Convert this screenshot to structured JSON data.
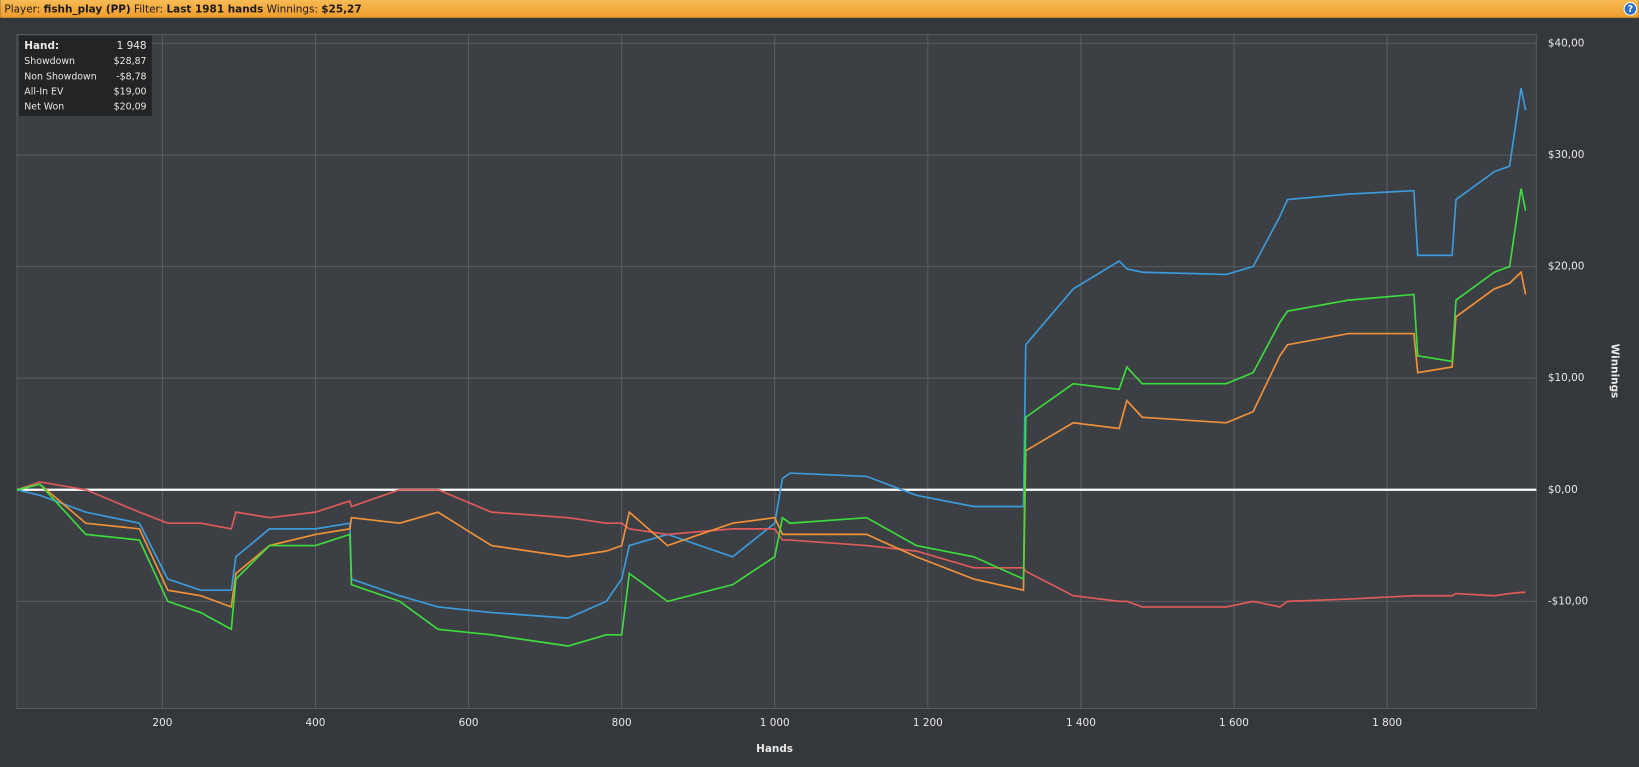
{
  "header": {
    "player_label": "Player:",
    "player": "fishh_play (PP)",
    "filter_label": "Filter:",
    "filter": "Last 1981 hands",
    "winnings_label": "Winnings:",
    "winnings": "$25,27",
    "help": "?"
  },
  "chart_data": {
    "type": "line",
    "x_label": "Hands",
    "y_label": "Winnings",
    "xlim": [
      10,
      1995
    ],
    "ylim": [
      -19.6,
      40.8
    ],
    "xticks": [
      200,
      400,
      600,
      800,
      {
        "value": 1000,
        "label": "1 000"
      },
      {
        "value": 1200,
        "label": "1 200"
      },
      {
        "value": 1400,
        "label": "1 400"
      },
      {
        "value": 1600,
        "label": "1 600"
      },
      {
        "value": 1800,
        "label": "1 800"
      }
    ],
    "yticks": [
      {
        "value": 40,
        "label": "$40,00"
      },
      {
        "value": 30,
        "label": "$30,00"
      },
      {
        "value": 20,
        "label": "$20,00"
      },
      {
        "value": 10,
        "label": "$10,00"
      },
      {
        "value": 0,
        "label": "$0,00"
      },
      {
        "value": -10,
        "label": "-$10,00"
      }
    ],
    "grid": true,
    "zero_line": 0,
    "x": [
      10,
      40,
      100,
      170,
      207,
      250,
      290,
      296,
      340,
      400,
      445,
      447,
      510,
      560,
      630,
      730,
      780,
      800,
      810,
      860,
      945,
      1000,
      1010,
      1020,
      1120,
      1185,
      1260,
      1325,
      1328,
      1390,
      1450,
      1460,
      1480,
      1590,
      1625,
      1660,
      1670,
      1750,
      1835,
      1840,
      1885,
      1890,
      1940,
      1960,
      1975,
      1981
    ],
    "series": [
      {
        "name": "Showdown",
        "color": "#3b9bdb",
        "values": [
          0,
          -0.5,
          -2,
          -3,
          -8,
          -9,
          -9,
          -6,
          -3.5,
          -3.5,
          -3,
          -8,
          -9.5,
          -10.5,
          -11,
          -11.5,
          -10,
          -8,
          -5,
          -4,
          -6,
          -3,
          1,
          1.5,
          1.2,
          -0.5,
          -1.5,
          -1.5,
          13,
          18,
          20.5,
          19.8,
          19.5,
          19.3,
          20,
          24.5,
          26,
          26.5,
          26.8,
          21,
          21,
          26,
          28.5,
          29,
          36,
          34
        ]
      },
      {
        "name": "Non Showdown",
        "color": "#e05a5a",
        "values": [
          0,
          0.7,
          0,
          -2,
          -3,
          -3,
          -3.5,
          -2,
          -2.5,
          -2,
          -1,
          -1.5,
          0,
          0,
          -2,
          -2.5,
          -3,
          -3,
          -3.5,
          -4,
          -3.5,
          -3.5,
          -4.5,
          -4.5,
          -5,
          -5.5,
          -7,
          -7,
          -7.3,
          -9.5,
          -10,
          -10,
          -10.5,
          -10.5,
          -10,
          -10.5,
          -10,
          -9.8,
          -9.5,
          -9.5,
          -9.5,
          -9.3,
          -9.5,
          -9.3,
          -9.2,
          -9.2
        ]
      },
      {
        "name": "All-In EV",
        "color": "#f0913a",
        "values": [
          0,
          0.5,
          -3,
          -3.5,
          -9,
          -9.5,
          -10.5,
          -7.5,
          -5,
          -4,
          -3.5,
          -2.5,
          -3,
          -2,
          -5,
          -6,
          -5.5,
          -5,
          -2,
          -5,
          -3,
          -2.5,
          -4,
          -4,
          -4,
          -6,
          -8,
          -9,
          3.5,
          6,
          5.5,
          8,
          6.5,
          6,
          7,
          12,
          13,
          14,
          14,
          10.5,
          11,
          15.5,
          18,
          18.5,
          19.5,
          17.5
        ]
      },
      {
        "name": "Net Won",
        "color": "#3ddc3d",
        "values": [
          0,
          0.5,
          -4,
          -4.5,
          -10,
          -11,
          -12.5,
          -8,
          -5,
          -5,
          -4,
          -8.5,
          -10,
          -12.5,
          -13,
          -14,
          -13,
          -13,
          -7.5,
          -10,
          -8.5,
          -6,
          -2.5,
          -3,
          -2.5,
          -5,
          -6,
          -8,
          6.5,
          9.5,
          9,
          11,
          9.5,
          9.5,
          10.5,
          15,
          16,
          17,
          17.5,
          12,
          11.5,
          17,
          19.5,
          20,
          27,
          25
        ]
      }
    ],
    "tooltip": {
      "title": "Hand:",
      "hand": "1 948",
      "values": [
        "$28,87",
        "-$8,78",
        "$19,00",
        "$20,09"
      ]
    }
  }
}
